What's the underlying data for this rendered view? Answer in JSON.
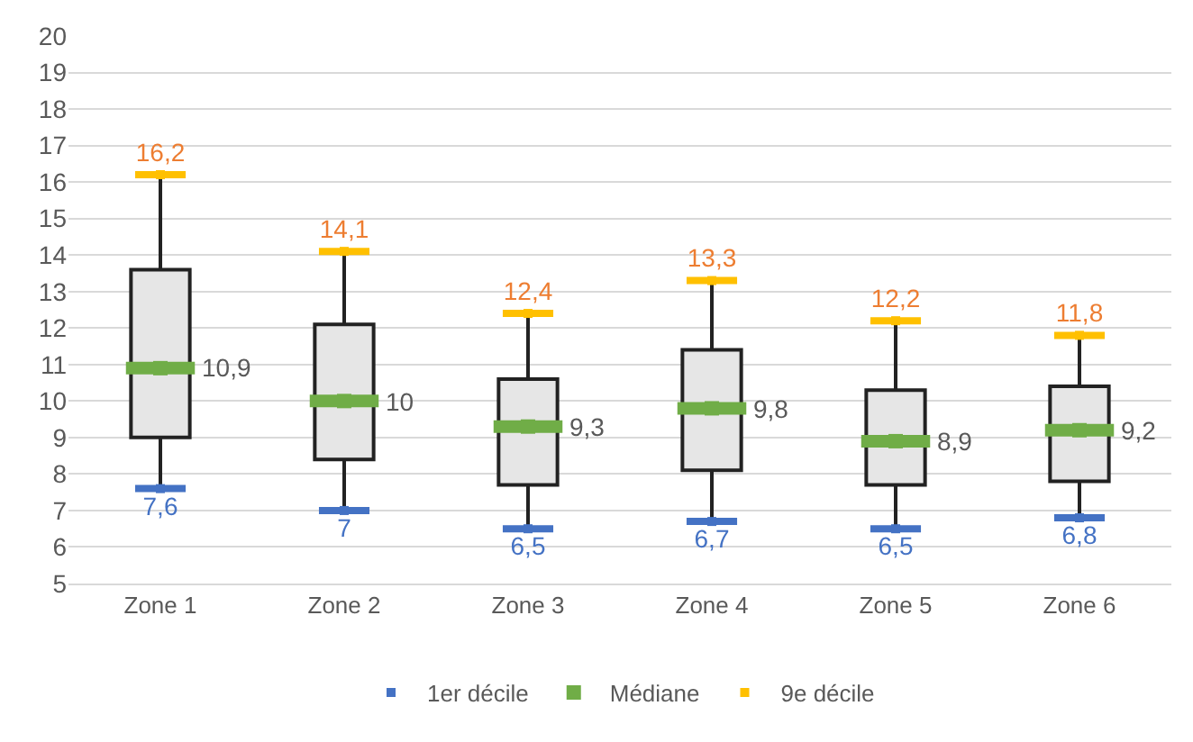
{
  "chart_data": {
    "type": "box",
    "categories": [
      "Zone 1",
      "Zone 2",
      "Zone 3",
      "Zone 4",
      "Zone 5",
      "Zone 6"
    ],
    "boxes": [
      {
        "low": 7.6,
        "q1": 9.0,
        "median": 10.9,
        "q3": 13.6,
        "high": 16.2
      },
      {
        "low": 7,
        "q1": 8.4,
        "median": 10,
        "q3": 12.1,
        "high": 14.1
      },
      {
        "low": 6.5,
        "q1": 7.7,
        "median": 9.3,
        "q3": 10.6,
        "high": 12.4
      },
      {
        "low": 6.7,
        "q1": 8.1,
        "median": 9.8,
        "q3": 11.4,
        "high": 13.3
      },
      {
        "low": 6.5,
        "q1": 7.7,
        "median": 8.9,
        "q3": 10.3,
        "high": 12.2
      },
      {
        "low": 6.8,
        "q1": 7.8,
        "median": 9.2,
        "q3": 10.4,
        "high": 11.8
      }
    ],
    "series": [
      {
        "type": "scatter",
        "name": "1er décile",
        "color": "#4472c4",
        "values": [
          7.6,
          7,
          6.5,
          6.7,
          6.5,
          6.8
        ],
        "value_labels": [
          "7,6",
          "7",
          "6,5",
          "6,7",
          "6,5",
          "6,8"
        ]
      },
      {
        "type": "scatter",
        "name": "Médiane",
        "color": "#70ad47",
        "values": [
          10.9,
          10,
          9.3,
          9.8,
          8.9,
          9.2
        ],
        "value_labels": [
          "10,9",
          "10",
          "9,3",
          "9,8",
          "8,9",
          "9,2"
        ]
      },
      {
        "type": "scatter",
        "name": "9e décile",
        "color": "#ffc000",
        "values": [
          16.2,
          14.1,
          12.4,
          13.3,
          12.2,
          11.8
        ],
        "value_labels": [
          "16,2",
          "14,1",
          "12,4",
          "13,3",
          "12,2",
          "11,8"
        ]
      }
    ],
    "ylim": [
      5,
      20
    ],
    "yticks": [
      5,
      6,
      7,
      8,
      9,
      10,
      11,
      12,
      13,
      14,
      15,
      16,
      17,
      18,
      19,
      20
    ],
    "grid": "y",
    "legend": "bottom"
  }
}
